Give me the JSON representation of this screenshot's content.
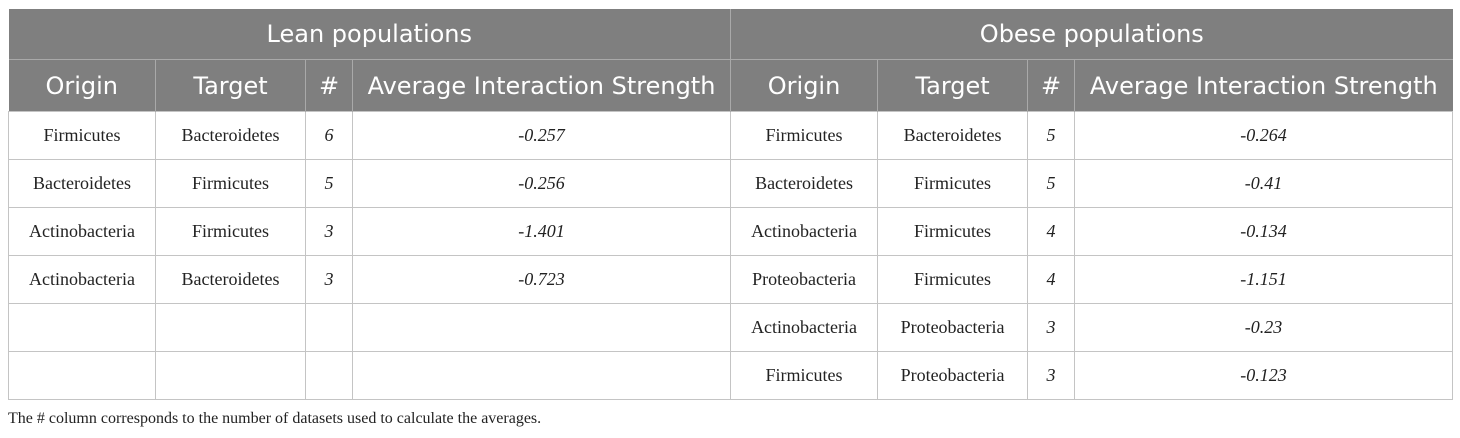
{
  "groups": {
    "lean": "Lean populations",
    "obese": "Obese populations"
  },
  "columns": {
    "origin": "Origin",
    "target": "Target",
    "count": "#",
    "avg": "Average Interaction Strength"
  },
  "rows": [
    {
      "lean": {
        "origin": "Firmicutes",
        "target": "Bacteroidetes",
        "count": "6",
        "avg": "-0.257"
      },
      "obese": {
        "origin": "Firmicutes",
        "target": "Bacteroidetes",
        "count": "5",
        "avg": "-0.264"
      }
    },
    {
      "lean": {
        "origin": "Bacteroidetes",
        "target": "Firmicutes",
        "count": "5",
        "avg": "-0.256"
      },
      "obese": {
        "origin": "Bacteroidetes",
        "target": "Firmicutes",
        "count": "5",
        "avg": "-0.41"
      }
    },
    {
      "lean": {
        "origin": "Actinobacteria",
        "target": "Firmicutes",
        "count": "3",
        "avg": "-1.401"
      },
      "obese": {
        "origin": "Actinobacteria",
        "target": "Firmicutes",
        "count": "4",
        "avg": "-0.134"
      }
    },
    {
      "lean": {
        "origin": "Actinobacteria",
        "target": "Bacteroidetes",
        "count": "3",
        "avg": "-0.723"
      },
      "obese": {
        "origin": "Proteobacteria",
        "target": "Firmicutes",
        "count": "4",
        "avg": "-1.151"
      }
    },
    {
      "lean": {
        "origin": "",
        "target": "",
        "count": "",
        "avg": ""
      },
      "obese": {
        "origin": "Actinobacteria",
        "target": "Proteobacteria",
        "count": "3",
        "avg": "-0.23"
      }
    },
    {
      "lean": {
        "origin": "",
        "target": "",
        "count": "",
        "avg": ""
      },
      "obese": {
        "origin": "Firmicutes",
        "target": "Proteobacteria",
        "count": "3",
        "avg": "-0.123"
      }
    }
  ],
  "footnote": "The # column corresponds to the number of datasets used to calculate the averages.",
  "colors": {
    "header_bg": "#7f7f7f",
    "header_text": "#ffffff",
    "grid": "#c4c4c4"
  }
}
